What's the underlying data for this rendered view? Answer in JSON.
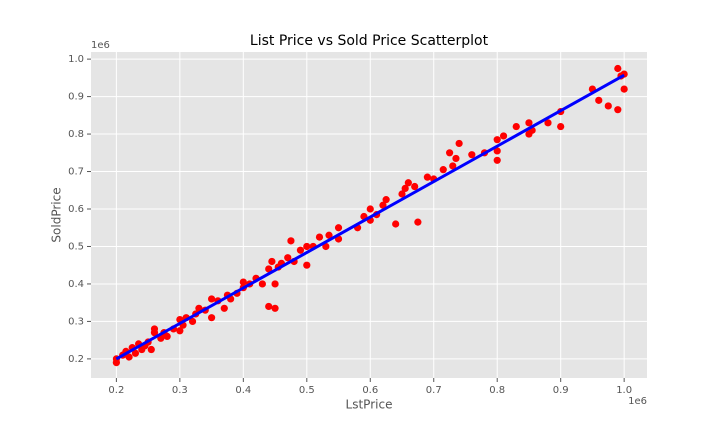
{
  "chart_data": {
    "type": "scatter",
    "title": "List Price vs Sold Price Scatterplot",
    "x_label": "LstPrice",
    "y_label": "SoldPrice",
    "x_offset_label": "1e6",
    "y_offset_label": "1e6",
    "xlim": [
      0.16,
      1.036
    ],
    "ylim": [
      0.149,
      1.019
    ],
    "xticks": [
      0.2,
      0.3,
      0.4,
      0.5,
      0.6,
      0.7,
      0.8,
      0.9,
      {
        "value": 1,
        "label": "1.0"
      }
    ],
    "yticks": [
      0.2,
      0.3,
      0.4,
      0.5,
      0.6,
      0.7,
      0.8,
      0.9,
      {
        "value": 1,
        "label": "1.0"
      }
    ],
    "grid": true,
    "series": [
      {
        "type": "scatter",
        "color": "#ff0000",
        "x": [
          0.2,
          0.2,
          0.21,
          0.215,
          0.22,
          0.225,
          0.23,
          0.235,
          0.24,
          0.245,
          0.25,
          0.255,
          0.26,
          0.26,
          0.27,
          0.275,
          0.28,
          0.29,
          0.3,
          0.3,
          0.305,
          0.31,
          0.32,
          0.325,
          0.33,
          0.34,
          0.35,
          0.35,
          0.36,
          0.37,
          0.375,
          0.38,
          0.39,
          0.4,
          0.4,
          0.41,
          0.42,
          0.43,
          0.44,
          0.45,
          0.44,
          0.445,
          0.45,
          0.455,
          0.46,
          0.47,
          0.475,
          0.48,
          0.49,
          0.5,
          0.5,
          0.51,
          0.52,
          0.53,
          0.535,
          0.55,
          0.55,
          0.58,
          0.59,
          0.6,
          0.6,
          0.61,
          0.62,
          0.625,
          0.64,
          0.65,
          0.655,
          0.66,
          0.67,
          0.675,
          0.69,
          0.7,
          0.715,
          0.725,
          0.73,
          0.735,
          0.74,
          0.76,
          0.78,
          0.8,
          0.8,
          0.8,
          0.81,
          0.83,
          0.85,
          0.85,
          0.855,
          0.88,
          0.9,
          0.9,
          0.95,
          0.96,
          0.975,
          0.99,
          0.99,
          0.995,
          1.0,
          1.0
        ],
        "values": [
          0.19,
          0.2,
          0.21,
          0.22,
          0.205,
          0.23,
          0.215,
          0.24,
          0.225,
          0.235,
          0.245,
          0.225,
          0.27,
          0.28,
          0.255,
          0.27,
          0.26,
          0.28,
          0.305,
          0.275,
          0.29,
          0.31,
          0.3,
          0.32,
          0.335,
          0.33,
          0.31,
          0.36,
          0.355,
          0.335,
          0.37,
          0.36,
          0.375,
          0.39,
          0.405,
          0.4,
          0.415,
          0.4,
          0.34,
          0.335,
          0.44,
          0.46,
          0.4,
          0.445,
          0.455,
          0.47,
          0.515,
          0.46,
          0.49,
          0.5,
          0.45,
          0.5,
          0.525,
          0.5,
          0.53,
          0.55,
          0.52,
          0.55,
          0.58,
          0.6,
          0.57,
          0.585,
          0.61,
          0.625,
          0.56,
          0.64,
          0.655,
          0.67,
          0.66,
          0.565,
          0.685,
          0.68,
          0.705,
          0.75,
          0.715,
          0.735,
          0.775,
          0.745,
          0.75,
          0.785,
          0.73,
          0.755,
          0.795,
          0.82,
          0.8,
          0.83,
          0.81,
          0.83,
          0.86,
          0.82,
          0.92,
          0.89,
          0.875,
          0.975,
          0.865,
          0.955,
          0.96,
          0.92
        ]
      },
      {
        "type": "line",
        "color": "#0000ff",
        "x": [
          0.2,
          1.0
        ],
        "values": [
          0.2,
          0.957
        ]
      }
    ]
  }
}
